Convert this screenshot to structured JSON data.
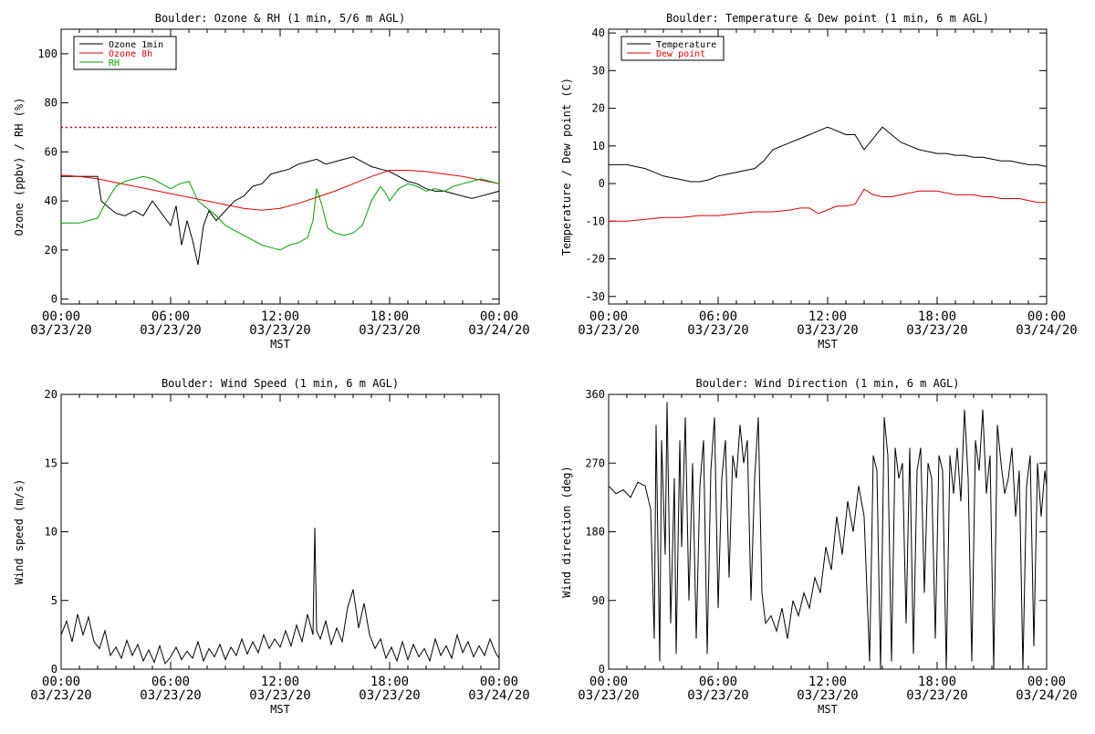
{
  "colors": {
    "black": "#000000",
    "red": "#dd0000",
    "green": "#00a000"
  },
  "time_ticks": [
    {
      "time": "00:00",
      "date": "03/23/20"
    },
    {
      "time": "06:00",
      "date": "03/23/20"
    },
    {
      "time": "12:00",
      "date": "03/23/20"
    },
    {
      "time": "18:00",
      "date": "03/23/20"
    },
    {
      "time": "00:00",
      "date": "03/24/20"
    }
  ],
  "chart_data": [
    {
      "type": "line",
      "title": "Boulder: Ozone & RH (1 min, 5/6 m AGL)",
      "xlabel": "MST",
      "ylabel": "Ozone (ppbv) / RH (%)",
      "xlim": [
        0,
        24
      ],
      "ylim": [
        -2,
        110
      ],
      "yticks": [
        0,
        20,
        40,
        60,
        80,
        100
      ],
      "legend": "top-left",
      "reference_line": {
        "y": 70,
        "color": "#dd0000",
        "style": "dotted"
      },
      "series": [
        {
          "name": "Ozone 1min",
          "color": "#000000",
          "x": [
            0,
            1,
            2,
            2.2,
            2.5,
            3,
            3.5,
            4,
            4.5,
            5,
            5.5,
            6,
            6.3,
            6.6,
            6.9,
            7.2,
            7.5,
            7.8,
            8.1,
            8.5,
            9,
            9.5,
            10,
            10.5,
            11,
            11.5,
            12,
            12.5,
            13,
            13.5,
            14,
            14.5,
            15,
            15.5,
            16,
            16.5,
            17,
            17.5,
            18,
            18.5,
            19,
            19.5,
            20,
            20.5,
            21,
            21.5,
            22,
            22.5,
            23,
            23.5,
            24
          ],
          "y": [
            50,
            50,
            50,
            40,
            38,
            35,
            34,
            36,
            34,
            40,
            35,
            30,
            38,
            22,
            32,
            24,
            14,
            30,
            36,
            32,
            36,
            40,
            42,
            46,
            47,
            51,
            52,
            53,
            55,
            56,
            57,
            55,
            56,
            57,
            58,
            56,
            54,
            53,
            52,
            50,
            48,
            47,
            45,
            44,
            44,
            43,
            42,
            41,
            42,
            43,
            44
          ]
        },
        {
          "name": "Ozone 8h",
          "color": "#dd0000",
          "x": [
            0,
            1,
            2,
            3,
            4,
            5,
            6,
            7,
            8,
            9,
            10,
            11,
            12,
            13,
            14,
            15,
            16,
            17,
            18,
            19,
            20,
            21,
            22,
            23,
            24
          ],
          "y": [
            50.5,
            50,
            49,
            47.5,
            46,
            44.5,
            43,
            41.5,
            40,
            38.5,
            37,
            36.2,
            37,
            39,
            41.5,
            44,
            47,
            50,
            52.5,
            52.5,
            52,
            51,
            50,
            48.5,
            47
          ]
        },
        {
          "name": "RH",
          "color": "#00a000",
          "x": [
            0,
            0.5,
            1,
            1.5,
            2,
            2.5,
            3,
            3.5,
            4,
            4.5,
            5,
            5.5,
            6,
            6.5,
            7,
            7.5,
            8,
            8.5,
            9,
            9.5,
            10,
            10.5,
            11,
            11.5,
            12,
            12.5,
            13,
            13.5,
            13.8,
            14,
            14.3,
            14.6,
            15,
            15.5,
            16,
            16.5,
            17,
            17.5,
            17.8,
            18,
            18.5,
            19,
            19.5,
            20,
            20.5,
            21,
            21.5,
            22,
            22.5,
            23,
            23.5,
            24
          ],
          "y": [
            31,
            31,
            31,
            32,
            33,
            40,
            46,
            48,
            49,
            50,
            49,
            47,
            45,
            47,
            48,
            40,
            37,
            34,
            30,
            28,
            26,
            24,
            22,
            21,
            20,
            22,
            23,
            25,
            32,
            45,
            38,
            29,
            27,
            26,
            27,
            30,
            40,
            46,
            43,
            40,
            45,
            47,
            46,
            44,
            45,
            44,
            46,
            47,
            48,
            49,
            48,
            47
          ]
        }
      ]
    },
    {
      "type": "line",
      "title": "Boulder: Temperature & Dew point (1 min, 6 m AGL)",
      "xlabel": "MST",
      "ylabel": "Temperature / Dew point (C)",
      "xlim": [
        0,
        24
      ],
      "ylim": [
        -32,
        41
      ],
      "yticks": [
        -30,
        -20,
        -10,
        0,
        10,
        20,
        30,
        40
      ],
      "legend": "top-left",
      "series": [
        {
          "name": "Temperature",
          "color": "#000000",
          "x": [
            0,
            1,
            2,
            2.5,
            3,
            3.5,
            4,
            4.5,
            5,
            5.5,
            6,
            6.5,
            7,
            7.5,
            8,
            8.5,
            9,
            9.5,
            10,
            10.5,
            11,
            11.5,
            12,
            12.5,
            13,
            13.5,
            14,
            14.5,
            15,
            15.5,
            16,
            16.5,
            17,
            17.5,
            18,
            18.5,
            19,
            19.5,
            20,
            20.5,
            21,
            21.5,
            22,
            22.5,
            23,
            23.5,
            24
          ],
          "y": [
            5,
            5,
            4,
            3,
            2,
            1.5,
            1,
            0.5,
            0.5,
            1,
            2,
            2.5,
            3,
            3.5,
            4,
            6,
            9,
            10,
            11,
            12,
            13,
            14,
            15,
            14,
            13,
            13,
            9,
            12,
            15,
            13,
            11,
            10,
            9,
            8.5,
            8,
            8,
            7.5,
            7.5,
            7,
            7,
            6.5,
            6,
            6,
            5.5,
            5,
            5,
            4.5
          ]
        },
        {
          "name": "Dew point",
          "color": "#dd0000",
          "x": [
            0,
            1,
            2,
            3,
            4,
            5,
            6,
            7,
            8,
            9,
            10,
            10.5,
            11,
            11.5,
            12,
            12.5,
            13,
            13.5,
            14,
            14.5,
            15,
            15.5,
            16,
            16.5,
            17,
            17.5,
            18,
            18.5,
            19,
            19.5,
            20,
            20.5,
            21,
            21.5,
            22,
            22.5,
            23,
            23.5,
            24
          ],
          "y": [
            -10,
            -10,
            -9.5,
            -9,
            -9,
            -8.5,
            -8.5,
            -8,
            -7.5,
            -7.5,
            -7,
            -6.5,
            -6.5,
            -8,
            -7,
            -6,
            -6,
            -5.5,
            -1.5,
            -3,
            -3.5,
            -3.5,
            -3,
            -2.5,
            -2,
            -2,
            -2,
            -2.5,
            -3,
            -3,
            -3,
            -3.5,
            -3.5,
            -4,
            -4,
            -4,
            -4.5,
            -5,
            -5
          ]
        }
      ]
    },
    {
      "type": "line",
      "title": "Boulder: Wind Speed (1 min, 6 m AGL)",
      "xlabel": "MST",
      "ylabel": "Wind speed (m/s)",
      "xlim": [
        0,
        24
      ],
      "ylim": [
        0,
        20
      ],
      "yticks": [
        0,
        5,
        10,
        15,
        20
      ],
      "series": [
        {
          "name": "",
          "color": "#000000",
          "x": [
            0,
            0.3,
            0.6,
            0.9,
            1.2,
            1.5,
            1.8,
            2.1,
            2.4,
            2.7,
            3,
            3.3,
            3.6,
            3.9,
            4.2,
            4.5,
            4.8,
            5.1,
            5.4,
            5.7,
            6,
            6.3,
            6.6,
            6.9,
            7.2,
            7.5,
            7.8,
            8.1,
            8.4,
            8.7,
            9,
            9.3,
            9.6,
            9.9,
            10.2,
            10.5,
            10.8,
            11.1,
            11.4,
            11.7,
            12,
            12.3,
            12.6,
            12.9,
            13.2,
            13.5,
            13.8,
            13.9,
            14,
            14.2,
            14.5,
            14.8,
            15.1,
            15.4,
            15.7,
            16,
            16.3,
            16.6,
            16.9,
            17.2,
            17.5,
            17.8,
            18.1,
            18.4,
            18.7,
            19,
            19.3,
            19.6,
            19.9,
            20.2,
            20.5,
            20.8,
            21.1,
            21.4,
            21.7,
            22,
            22.3,
            22.6,
            22.9,
            23.2,
            23.5,
            23.8,
            24
          ],
          "y": [
            2.5,
            3.5,
            2,
            4,
            2.5,
            3.8,
            2,
            1.5,
            2.8,
            1,
            1.6,
            0.8,
            2.1,
            1,
            1.8,
            0.6,
            1.4,
            0.5,
            1.7,
            0.4,
            0.9,
            1.6,
            0.7,
            1.3,
            0.8,
            2,
            0.6,
            1.5,
            0.9,
            1.8,
            0.7,
            1.6,
            1,
            2.2,
            1.1,
            2,
            1.2,
            2.5,
            1.5,
            2.2,
            1.6,
            2.8,
            1.7,
            3.2,
            2,
            4,
            2.5,
            10.3,
            2.8,
            2.2,
            3.5,
            1.8,
            3,
            2,
            4.5,
            5.8,
            3,
            4.8,
            2.5,
            1.5,
            2.2,
            0.8,
            1.6,
            0.6,
            2,
            0.7,
            1.8,
            0.9,
            1.5,
            0.6,
            2.2,
            1,
            1.7,
            0.8,
            2.5,
            1.2,
            2,
            0.9,
            1.7,
            1,
            2.2,
            1.2,
            0.8
          ]
        }
      ]
    },
    {
      "type": "line",
      "title": "Boulder: Wind Direction (1 min, 6 m AGL)",
      "xlabel": "MST",
      "ylabel": "Wind direction (deg)",
      "xlim": [
        0,
        24
      ],
      "ylim": [
        0,
        360
      ],
      "yticks": [
        0,
        90,
        180,
        270,
        360
      ],
      "series": [
        {
          "name": "",
          "color": "#000000",
          "x": [
            0,
            0.4,
            0.8,
            1.2,
            1.6,
            2,
            2.3,
            2.5,
            2.6,
            2.8,
            2.9,
            3.1,
            3.2,
            3.4,
            3.6,
            3.7,
            3.9,
            4,
            4.2,
            4.4,
            4.6,
            4.8,
            5,
            5.2,
            5.4,
            5.6,
            5.8,
            6,
            6.2,
            6.4,
            6.6,
            6.8,
            7,
            7.2,
            7.4,
            7.6,
            7.8,
            8,
            8.2,
            8.4,
            8.6,
            8.9,
            9.2,
            9.5,
            9.8,
            10.1,
            10.4,
            10.7,
            11,
            11.3,
            11.6,
            11.9,
            12.2,
            12.5,
            12.8,
            13.1,
            13.4,
            13.7,
            14,
            14.3,
            14.5,
            14.7,
            14.9,
            15.1,
            15.3,
            15.5,
            15.7,
            15.9,
            16.1,
            16.3,
            16.5,
            16.7,
            16.9,
            17.1,
            17.3,
            17.5,
            17.7,
            17.9,
            18.1,
            18.3,
            18.5,
            18.7,
            18.9,
            19.1,
            19.3,
            19.5,
            19.7,
            19.9,
            20.1,
            20.3,
            20.5,
            20.7,
            20.9,
            21.1,
            21.3,
            21.5,
            21.7,
            21.9,
            22.1,
            22.3,
            22.5,
            22.7,
            22.9,
            23.1,
            23.3,
            23.5,
            23.7,
            23.9,
            24
          ],
          "y": [
            240,
            230,
            235,
            225,
            245,
            240,
            210,
            40,
            320,
            10,
            300,
            150,
            350,
            60,
            250,
            20,
            300,
            160,
            330,
            90,
            270,
            40,
            240,
            300,
            20,
            260,
            330,
            80,
            250,
            300,
            120,
            280,
            250,
            320,
            270,
            300,
            90,
            250,
            330,
            100,
            60,
            70,
            50,
            80,
            40,
            90,
            70,
            100,
            80,
            120,
            100,
            160,
            130,
            200,
            150,
            220,
            180,
            240,
            200,
            10,
            280,
            260,
            0,
            330,
            280,
            10,
            290,
            250,
            270,
            60,
            290,
            20,
            260,
            290,
            100,
            270,
            250,
            40,
            280,
            260,
            0,
            280,
            230,
            290,
            220,
            340,
            250,
            10,
            300,
            260,
            340,
            230,
            280,
            0,
            320,
            270,
            230,
            250,
            290,
            200,
            260,
            0,
            240,
            280,
            30,
            270,
            200,
            260,
            240
          ]
        }
      ]
    }
  ]
}
